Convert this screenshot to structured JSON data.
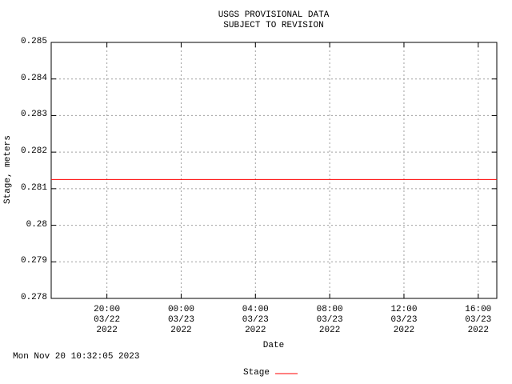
{
  "chart_data": {
    "type": "line",
    "title": "USGS PROVISIONAL DATA",
    "subtitle": "SUBJECT TO REVISION",
    "y_label": "Stage, meters",
    "x_label": "Date",
    "footer": "Mon Nov 20 10:32:05 2023",
    "x": [
      "2022-03-22T17:00",
      "2022-03-23T17:00"
    ],
    "series": [
      {
        "name": "Stage",
        "color": "#ff0000",
        "values": [
          0.28125,
          0.28125
        ]
      }
    ],
    "xlim": [
      "2022-03-22T17:00",
      "2022-03-23T17:00"
    ],
    "xticks": [
      {
        "value": "2022-03-22T20:00",
        "label": "20:00\n03/22\n2022"
      },
      {
        "value": "2022-03-23T00:00",
        "label": "00:00\n03/23\n2022"
      },
      {
        "value": "2022-03-23T04:00",
        "label": "04:00\n03/23\n2022"
      },
      {
        "value": "2022-03-23T08:00",
        "label": "08:00\n03/23\n2022"
      },
      {
        "value": "2022-03-23T12:00",
        "label": "12:00\n03/23\n2022"
      },
      {
        "value": "2022-03-23T16:00",
        "label": "16:00\n03/23\n2022"
      }
    ],
    "ylim": [
      0.278,
      0.285
    ],
    "yticks": [
      0.278,
      0.279,
      0.28,
      0.281,
      0.282,
      0.283,
      0.284,
      0.285
    ],
    "grid": true
  }
}
